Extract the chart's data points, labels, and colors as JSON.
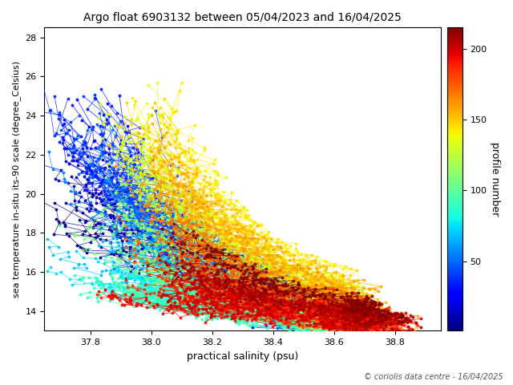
{
  "title": "Argo float 6903132 between 05/04/2023 and 16/04/2025",
  "xlabel": "practical salinity (psu)",
  "ylabel": "sea temperature in-situ its-90 scale (degree_Celsius)",
  "colorbar_label": "profile number",
  "xlim": [
    37.65,
    38.95
  ],
  "ylim": [
    13.0,
    28.5
  ],
  "xticks": [
    37.8,
    38.0,
    38.2,
    38.4,
    38.6,
    38.8
  ],
  "yticks": [
    14,
    16,
    18,
    20,
    22,
    24,
    26,
    28
  ],
  "colorbar_ticks": [
    50,
    100,
    150,
    200
  ],
  "n_profiles": 215,
  "copyright_text": "© coriolis data centre - 16/04/2025",
  "cmap": "jet",
  "background_color": "white",
  "figsize": [
    6.4,
    4.8
  ],
  "dpi": 100
}
